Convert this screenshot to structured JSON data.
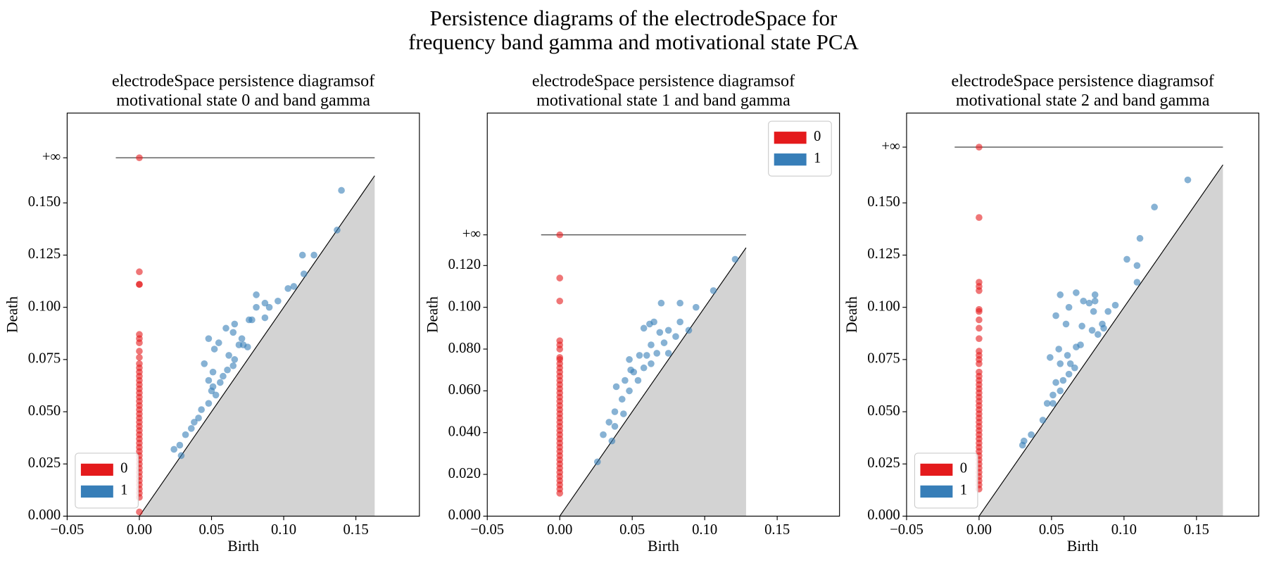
{
  "title": [
    "Persistence diagrams of the electrodeSpace for",
    "frequency band gamma and motivational state PCA"
  ],
  "chart_data": [
    {
      "type": "scatter",
      "title": [
        "electrodeSpace persistence diagramsof",
        "motivational state 0 and band gamma"
      ],
      "xlabel": "Birth",
      "ylabel": "Death",
      "legend": "lower left",
      "infinity_line": true,
      "xlim": [
        -0.05,
        0.194
      ],
      "ylim": [
        0,
        0.193
      ],
      "xticks": [
        {
          "value": -0.05,
          "label": "−0.05"
        },
        {
          "value": 0,
          "label": "0.00"
        },
        {
          "value": 0.05,
          "label": "0.05"
        },
        {
          "value": 0.1,
          "label": "0.10"
        },
        {
          "value": 0.15,
          "label": "0.15"
        }
      ],
      "yticks": [
        {
          "value": 0,
          "label": "0.000"
        },
        {
          "value": 0.025,
          "label": "0.025"
        },
        {
          "value": 0.05,
          "label": "0.050"
        },
        {
          "value": 0.075,
          "label": "0.075"
        },
        {
          "value": 0.1,
          "label": "0.100"
        },
        {
          "value": 0.125,
          "label": "0.125"
        },
        {
          "value": 0.15,
          "label": "0.150"
        },
        {
          "value": 0.1716,
          "label": "+∞"
        }
      ],
      "series": [
        {
          "name": "0",
          "color": "#e41a1c",
          "x": [
            0,
            0,
            0,
            0,
            0,
            0,
            0,
            0,
            0,
            0,
            0,
            0,
            0,
            0,
            0,
            0,
            0,
            0,
            0,
            0,
            0,
            0,
            0,
            0,
            0,
            0,
            0,
            0,
            0,
            0,
            0,
            0,
            0,
            0,
            0,
            0,
            0,
            0,
            0,
            0,
            0,
            0,
            0
          ],
          "y": [
            0.1716,
            0.117,
            0.111,
            0.111,
            0.087,
            0.085,
            0.083,
            0.079,
            0.076,
            0.073,
            0.071,
            0.069,
            0.067,
            0.065,
            0.063,
            0.061,
            0.059,
            0.057,
            0.055,
            0.053,
            0.051,
            0.049,
            0.047,
            0.045,
            0.043,
            0.041,
            0.039,
            0.037,
            0.035,
            0.033,
            0.031,
            0.029,
            0.027,
            0.025,
            0.023,
            0.021,
            0.019,
            0.017,
            0.015,
            0.013,
            0.011,
            0.009,
            0.002
          ]
        },
        {
          "name": "1",
          "color": "#377eb8",
          "x": [
            0.14,
            0.137,
            0.113,
            0.121,
            0.114,
            0.107,
            0.081,
            0.096,
            0.087,
            0.09,
            0.081,
            0.076,
            0.078,
            0.087,
            0.066,
            0.06,
            0.065,
            0.072,
            0.069,
            0.055,
            0.048,
            0.075,
            0.066,
            0.065,
            0.061,
            0.052,
            0.045,
            0.051,
            0.058,
            0.056,
            0.051,
            0.05,
            0.053,
            0.048,
            0.043,
            0.041,
            0.038,
            0.036,
            0.032,
            0.028,
            0.024,
            0.029,
            0.048,
            0.062,
            0.071,
            0.103
          ],
          "y": [
            0.156,
            0.137,
            0.125,
            0.125,
            0.116,
            0.11,
            0.106,
            0.103,
            0.102,
            0.1,
            0.1,
            0.094,
            0.094,
            0.095,
            0.092,
            0.09,
            0.088,
            0.082,
            0.082,
            0.083,
            0.085,
            0.081,
            0.075,
            0.072,
            0.07,
            0.08,
            0.073,
            0.069,
            0.067,
            0.064,
            0.062,
            0.06,
            0.058,
            0.054,
            0.051,
            0.047,
            0.045,
            0.042,
            0.039,
            0.034,
            0.032,
            0.029,
            0.065,
            0.077,
            0.085,
            0.109
          ]
        }
      ]
    },
    {
      "type": "scatter",
      "title": [
        "electrodeSpace persistence diagramsof",
        "motivational state 1 and band gamma"
      ],
      "xlabel": "Birth",
      "ylabel": "Death",
      "legend": "upper right",
      "infinity_line": true,
      "xlim": [
        -0.05,
        0.193
      ],
      "ylim": [
        0,
        0.193
      ],
      "xticks": [
        {
          "value": -0.05,
          "label": "−0.05"
        },
        {
          "value": 0,
          "label": "0.00"
        },
        {
          "value": 0.05,
          "label": "0.05"
        },
        {
          "value": 0.1,
          "label": "0.10"
        },
        {
          "value": 0.15,
          "label": "0.15"
        }
      ],
      "yticks": [
        {
          "value": 0,
          "label": "0.000"
        },
        {
          "value": 0.02,
          "label": "0.020"
        },
        {
          "value": 0.04,
          "label": "0.040"
        },
        {
          "value": 0.06,
          "label": "0.060"
        },
        {
          "value": 0.08,
          "label": "0.080"
        },
        {
          "value": 0.1,
          "label": "0.100"
        },
        {
          "value": 0.12,
          "label": "0.120"
        },
        {
          "value": 0.1347,
          "label": "+∞"
        }
      ],
      "series": [
        {
          "name": "0",
          "color": "#e41a1c",
          "x": [
            0,
            0,
            0,
            0,
            0,
            0,
            0,
            0,
            0,
            0,
            0,
            0,
            0,
            0,
            0,
            0,
            0,
            0,
            0,
            0,
            0,
            0,
            0,
            0,
            0,
            0,
            0,
            0,
            0,
            0,
            0,
            0,
            0,
            0,
            0,
            0,
            0,
            0,
            0,
            0
          ],
          "y": [
            0.1347,
            0.114,
            0.103,
            0.084,
            0.082,
            0.08,
            0.076,
            0.075,
            0.073,
            0.071,
            0.069,
            0.067,
            0.065,
            0.063,
            0.061,
            0.059,
            0.057,
            0.055,
            0.053,
            0.051,
            0.049,
            0.047,
            0.045,
            0.043,
            0.041,
            0.039,
            0.037,
            0.035,
            0.033,
            0.031,
            0.029,
            0.027,
            0.025,
            0.023,
            0.021,
            0.019,
            0.017,
            0.015,
            0.013,
            0.011
          ]
        },
        {
          "name": "1",
          "color": "#377eb8",
          "x": [
            0.121,
            0.106,
            0.094,
            0.083,
            0.07,
            0.062,
            0.065,
            0.058,
            0.083,
            0.075,
            0.069,
            0.08,
            0.072,
            0.063,
            0.067,
            0.06,
            0.055,
            0.048,
            0.051,
            0.058,
            0.063,
            0.049,
            0.054,
            0.045,
            0.048,
            0.039,
            0.043,
            0.038,
            0.044,
            0.034,
            0.038,
            0.03,
            0.036,
            0.026,
            0.075,
            0.089
          ],
          "y": [
            0.123,
            0.108,
            0.1,
            0.102,
            0.102,
            0.092,
            0.093,
            0.09,
            0.093,
            0.089,
            0.088,
            0.086,
            0.083,
            0.082,
            0.078,
            0.077,
            0.077,
            0.075,
            0.069,
            0.071,
            0.073,
            0.07,
            0.065,
            0.065,
            0.06,
            0.062,
            0.056,
            0.05,
            0.049,
            0.045,
            0.043,
            0.039,
            0.036,
            0.026,
            0.078,
            0.089
          ]
        }
      ]
    },
    {
      "type": "scatter",
      "title": [
        "electrodeSpace persistence diagramsof",
        "motivational state 2 and band gamma"
      ],
      "xlabel": "Birth",
      "ylabel": "Death",
      "legend": "lower left",
      "infinity_line": true,
      "xlim": [
        -0.05,
        0.193
      ],
      "ylim": [
        0,
        0.193
      ],
      "xticks": [
        {
          "value": -0.05,
          "label": "−0.05"
        },
        {
          "value": 0,
          "label": "0.00"
        },
        {
          "value": 0.05,
          "label": "0.05"
        },
        {
          "value": 0.1,
          "label": "0.10"
        },
        {
          "value": 0.15,
          "label": "0.15"
        }
      ],
      "yticks": [
        {
          "value": 0,
          "label": "0.000"
        },
        {
          "value": 0.025,
          "label": "0.025"
        },
        {
          "value": 0.05,
          "label": "0.050"
        },
        {
          "value": 0.075,
          "label": "0.075"
        },
        {
          "value": 0.1,
          "label": "0.100"
        },
        {
          "value": 0.125,
          "label": "0.125"
        },
        {
          "value": 0.15,
          "label": "0.150"
        },
        {
          "value": 0.1767,
          "label": "+∞"
        }
      ],
      "series": [
        {
          "name": "0",
          "color": "#e41a1c",
          "x": [
            0,
            0,
            0,
            0,
            0,
            0,
            0,
            0,
            0,
            0,
            0,
            0,
            0,
            0,
            0,
            0,
            0,
            0,
            0,
            0,
            0,
            0,
            0,
            0,
            0,
            0,
            0,
            0,
            0,
            0,
            0,
            0,
            0,
            0,
            0,
            0,
            0,
            0,
            0,
            0,
            0,
            0,
            0
          ],
          "y": [
            0.1767,
            0.143,
            0.112,
            0.11,
            0.108,
            0.099,
            0.098,
            0.094,
            0.09,
            0.085,
            0.079,
            0.077,
            0.075,
            0.073,
            0.069,
            0.067,
            0.065,
            0.063,
            0.061,
            0.059,
            0.057,
            0.055,
            0.053,
            0.051,
            0.049,
            0.047,
            0.045,
            0.043,
            0.041,
            0.039,
            0.037,
            0.035,
            0.033,
            0.031,
            0.029,
            0.027,
            0.025,
            0.023,
            0.021,
            0.019,
            0.017,
            0.015,
            0.013
          ]
        },
        {
          "name": "1",
          "color": "#377eb8",
          "x": [
            0.144,
            0.121,
            0.111,
            0.102,
            0.109,
            0.109,
            0.094,
            0.067,
            0.056,
            0.072,
            0.076,
            0.08,
            0.08,
            0.062,
            0.079,
            0.089,
            0.085,
            0.071,
            0.078,
            0.06,
            0.053,
            0.067,
            0.07,
            0.082,
            0.086,
            0.055,
            0.061,
            0.056,
            0.063,
            0.049,
            0.066,
            0.062,
            0.058,
            0.053,
            0.051,
            0.056,
            0.051,
            0.047,
            0.044,
            0.036,
            0.031,
            0.03
          ],
          "y": [
            0.161,
            0.148,
            0.133,
            0.123,
            0.12,
            0.112,
            0.101,
            0.107,
            0.106,
            0.103,
            0.102,
            0.106,
            0.103,
            0.1,
            0.098,
            0.098,
            0.092,
            0.091,
            0.089,
            0.092,
            0.096,
            0.081,
            0.082,
            0.087,
            0.09,
            0.08,
            0.077,
            0.073,
            0.073,
            0.076,
            0.071,
            0.068,
            0.065,
            0.064,
            0.058,
            0.06,
            0.054,
            0.054,
            0.046,
            0.039,
            0.036,
            0.034
          ]
        }
      ]
    }
  ]
}
